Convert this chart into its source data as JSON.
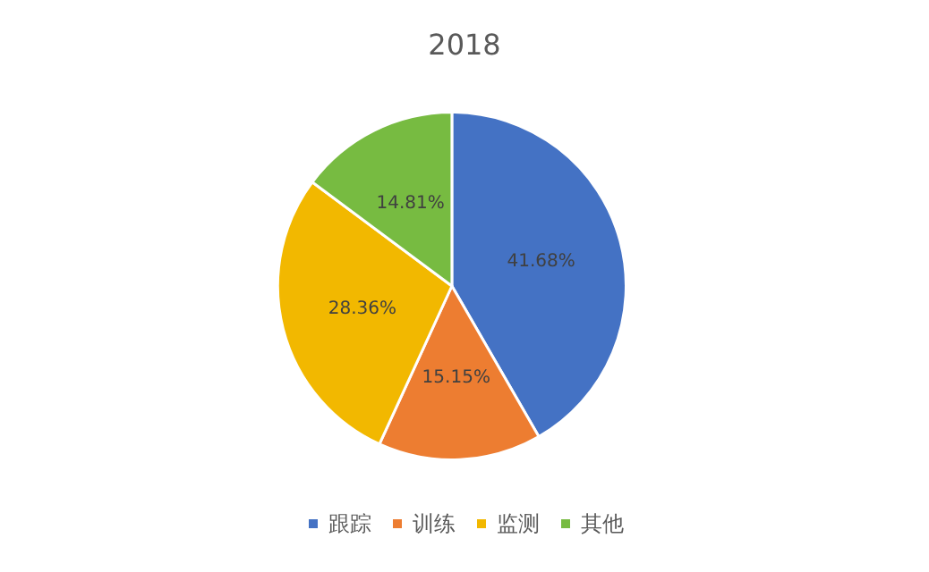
{
  "chart_data": {
    "type": "pie",
    "title": "2018",
    "categories": [
      "跟踪",
      "训练",
      "监测",
      "其他"
    ],
    "values": [
      41.68,
      15.15,
      28.36,
      14.81
    ],
    "value_labels": [
      "41.68%",
      "15.15%",
      "28.36%",
      "14.81%"
    ],
    "colors": [
      "#4472c4",
      "#ed7d31",
      "#f2b800",
      "#77bb41"
    ],
    "legend": "bottom"
  }
}
